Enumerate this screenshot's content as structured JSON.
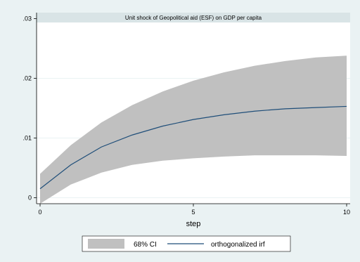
{
  "chart_data": {
    "type": "area",
    "title": "Unit shock of Geopolitical aid (ESF) on GDP per capita",
    "xlabel": "step",
    "ylabel": "",
    "xlim": [
      0,
      10
    ],
    "ylim": [
      -0.001,
      0.031
    ],
    "x_ticks": [
      0,
      5,
      10
    ],
    "x_tick_labels": [
      "0",
      "5",
      "10"
    ],
    "y_ticks": [
      0,
      0.01,
      0.02,
      0.03
    ],
    "y_tick_labels": [
      "0",
      ".01",
      ".02",
      ".03"
    ],
    "x": [
      0,
      1,
      2,
      3,
      4,
      5,
      6,
      7,
      8,
      9,
      10
    ],
    "series": [
      {
        "name": "orthogonalized irf",
        "kind": "line",
        "color": "#1f4e79",
        "values": [
          0.0015,
          0.0055,
          0.0085,
          0.0105,
          0.012,
          0.0131,
          0.0139,
          0.0145,
          0.0149,
          0.0151,
          0.0153
        ]
      },
      {
        "name": "68% CI",
        "kind": "band",
        "color": "#c0c0c0",
        "lower": [
          -0.001,
          0.0022,
          0.0042,
          0.0055,
          0.0062,
          0.0066,
          0.0069,
          0.0071,
          0.0071,
          0.0071,
          0.007
        ],
        "upper": [
          0.004,
          0.0088,
          0.0126,
          0.0155,
          0.0178,
          0.0196,
          0.021,
          0.0221,
          0.0229,
          0.0235,
          0.0238
        ]
      }
    ],
    "legend": {
      "placement": "bottom",
      "entries": [
        "68% CI",
        "orthogonalized irf"
      ]
    },
    "grid": "horizontal"
  },
  "colors": {
    "outer_background": "#eaf2f3",
    "plot_background": "#ffffff",
    "grid": "#eaf2f3",
    "title_bar": "#d9e4e6"
  }
}
